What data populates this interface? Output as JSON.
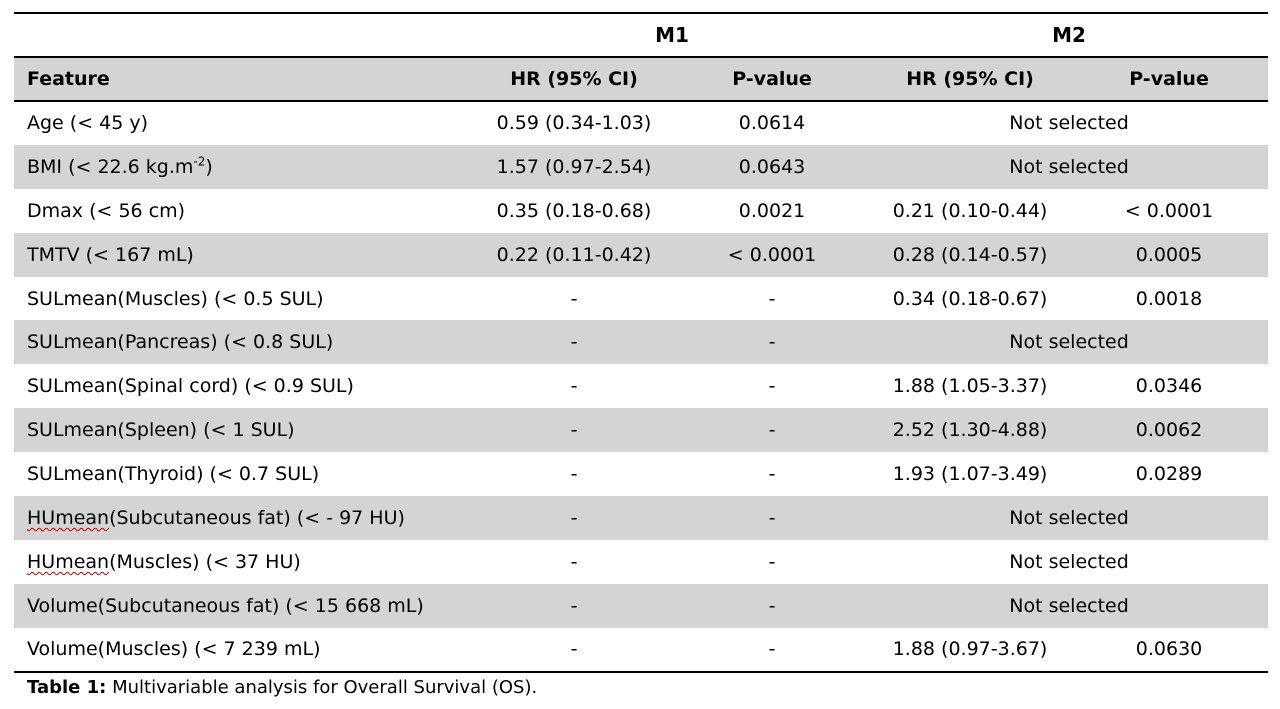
{
  "table": {
    "group_headers": {
      "m1": "M1",
      "m2": "M2"
    },
    "column_headers": {
      "feature": "Feature",
      "m1_hr": "HR (95% CI)",
      "m1_p": "P-value",
      "m2_hr": "HR (95% CI)",
      "m2_p": "P-value"
    },
    "rows": [
      {
        "feature": "Age (< 45 y)",
        "m1_hr": "0.59 (0.34-1.03)",
        "m1_p": "0.0614",
        "m2_merged": "Not selected"
      },
      {
        "feature_prefix": "BMI (< 22.6 kg.m",
        "feature_sup": "-2",
        "feature_suffix": ")",
        "m1_hr": "1.57 (0.97-2.54)",
        "m1_p": "0.0643",
        "m2_merged": "Not selected"
      },
      {
        "feature": "Dmax (< 56 cm)",
        "m1_hr": "0.35 (0.18-0.68)",
        "m1_p": "0.0021",
        "m2_hr": "0.21 (0.10-0.44)",
        "m2_p": "< 0.0001"
      },
      {
        "feature": "TMTV (< 167 mL)",
        "m1_hr": "0.22 (0.11-0.42)",
        "m1_p": "< 0.0001",
        "m2_hr": "0.28 (0.14-0.57)",
        "m2_p": "0.0005"
      },
      {
        "feature": "SULmean(Muscles) (< 0.5 SUL)",
        "m1_hr": "-",
        "m1_p": "-",
        "m2_hr": "0.34 (0.18-0.67)",
        "m2_p": "0.0018"
      },
      {
        "feature": "SULmean(Pancreas) (< 0.8 SUL)",
        "m1_hr": "-",
        "m1_p": "-",
        "m2_merged": "Not selected"
      },
      {
        "feature": "SULmean(Spinal cord) (< 0.9 SUL)",
        "m1_hr": "-",
        "m1_p": "-",
        "m2_hr": "1.88 (1.05-3.37)",
        "m2_p": "0.0346"
      },
      {
        "feature": "SULmean(Spleen) (< 1 SUL)",
        "m1_hr": "-",
        "m1_p": "-",
        "m2_hr": "2.52 (1.30-4.88)",
        "m2_p": "0.0062"
      },
      {
        "feature": "SULmean(Thyroid) (< 0.7 SUL)",
        "m1_hr": "-",
        "m1_p": "-",
        "m2_hr": "1.93 (1.07-3.49)",
        "m2_p": "0.0289"
      },
      {
        "feature_prefix": "HUmean",
        "feature_suffix": "(Subcutaneous fat) (< - 97 HU)",
        "m1_hr": "-",
        "m1_p": "-",
        "m2_merged": "Not selected"
      },
      {
        "feature_prefix": "HUmean",
        "feature_suffix": "(Muscles) (< 37 HU)",
        "m1_hr": "-",
        "m1_p": "-",
        "m2_merged": "Not selected"
      },
      {
        "feature": "Volume(Subcutaneous fat) (< 15 668 mL)",
        "m1_hr": "-",
        "m1_p": "-",
        "m2_merged": "Not selected"
      },
      {
        "feature": "Volume(Muscles) (< 7 239 mL)",
        "m1_hr": "-",
        "m1_p": "-",
        "m2_hr": "1.88 (0.97-3.67)",
        "m2_p": "0.0630"
      }
    ]
  },
  "caption": {
    "label": "Table 1:",
    "text": " Multivariable analysis for Overall Survival (OS)."
  }
}
